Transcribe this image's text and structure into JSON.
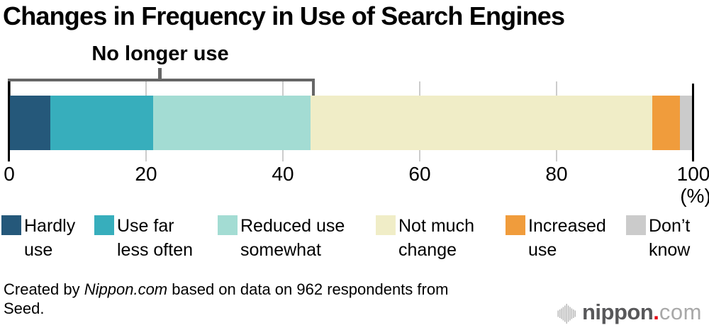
{
  "title": "Changes in Frequency in Use of Search Engines",
  "chart_data": {
    "type": "bar",
    "stacked": true,
    "orientation": "horizontal",
    "title": "Changes in Frequency in Use of Search Engines",
    "unit_label": "(%)",
    "x_ticks": [
      0,
      20,
      40,
      60,
      80,
      100
    ],
    "xlim": [
      0,
      100
    ],
    "grid": true,
    "segments": [
      {
        "label": "Hardly use",
        "legend_lines": [
          "Hardly",
          "use"
        ],
        "value": 6,
        "color": "#25587a"
      },
      {
        "label": "Use far less often",
        "legend_lines": [
          "Use far",
          "less often"
        ],
        "value": 15,
        "color": "#37aebc"
      },
      {
        "label": "Reduced use somewhat",
        "legend_lines": [
          "Reduced use",
          "somewhat"
        ],
        "value": 23,
        "color": "#a3dcd3"
      },
      {
        "label": "Not much change",
        "legend_lines": [
          "Not much",
          "change"
        ],
        "value": 50,
        "color": "#f0edc7"
      },
      {
        "label": "Increased use",
        "legend_lines": [
          "Increased",
          "use"
        ],
        "value": 4,
        "color": "#f09c3c"
      },
      {
        "label": "Don’t know",
        "legend_lines": [
          "Don’t",
          "know"
        ],
        "value": 2,
        "color": "#cbcbcb"
      }
    ],
    "annotation": {
      "label": "No longer use",
      "from_pct": 0,
      "to_pct": 44,
      "color": "#666666"
    },
    "legend_position": "bottom"
  },
  "footer": {
    "parts": [
      {
        "text": "Created by "
      },
      {
        "text": "Nippon.com",
        "italic": true
      },
      {
        "text": " based on data on 962 respondents from Seed."
      }
    ]
  },
  "logo": {
    "name": "nippon",
    "dot": ".",
    "tld": "com",
    "name_color": "#58585a",
    "dot_color": "#e60012",
    "tld_color": "#a8a8a8",
    "icon_color": "#b5b5b5"
  }
}
